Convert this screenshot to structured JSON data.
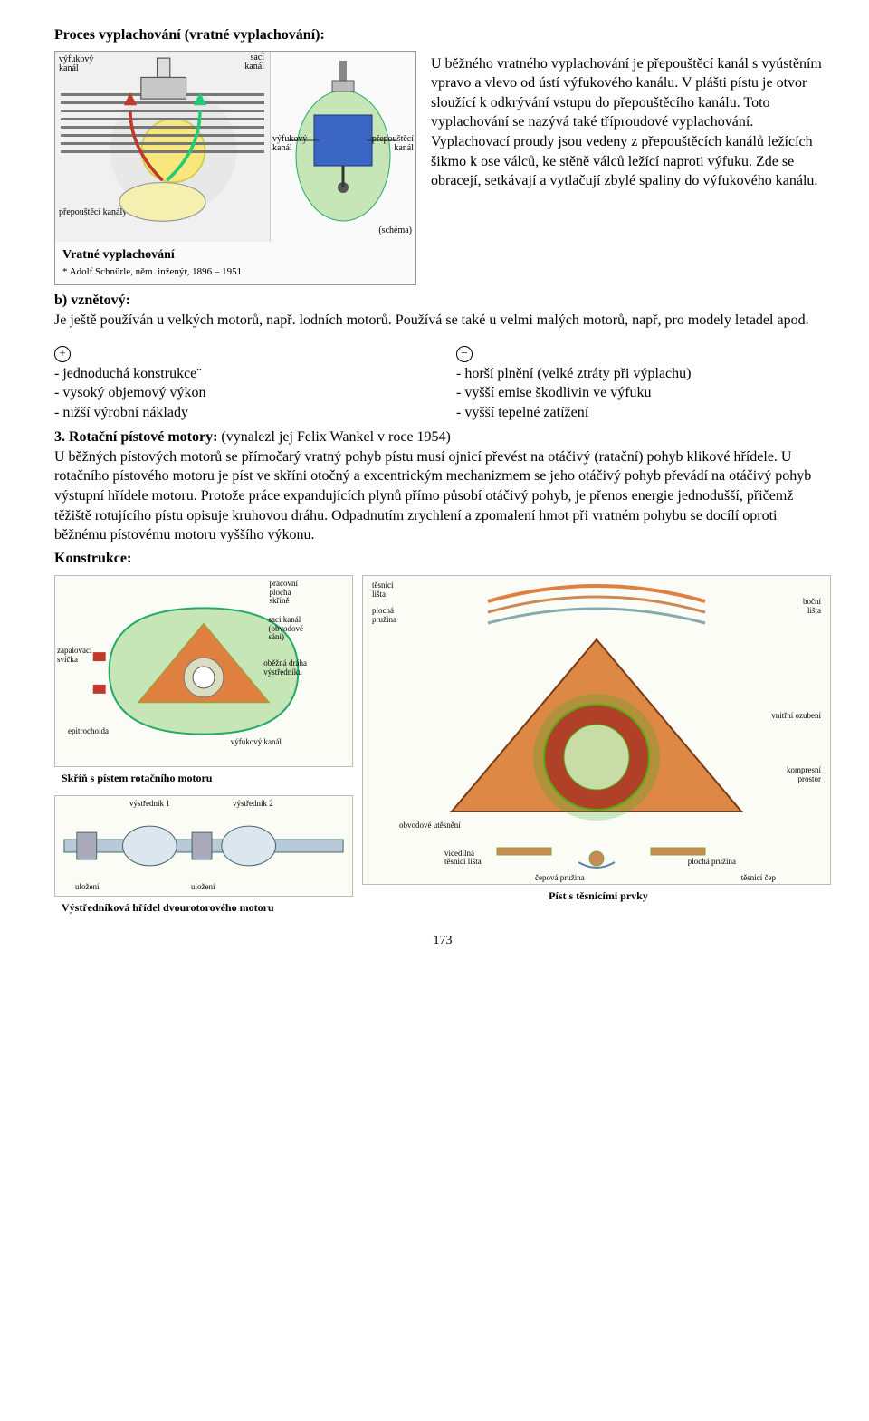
{
  "title": "Proces vyplachování (vratné vyplachování):",
  "fig1": {
    "labels": {
      "vyfukovy_kanal": "výfukový\nkanál",
      "saci_kanal": "sací\nkanál",
      "vyfukovy_kanal2": "výfukový\nkanál",
      "prepousteci_kanal": "přepouštěcí\nkanál",
      "prepousteci_kanaly": "přepouštěcí kanály",
      "schema": "(schéma)"
    },
    "caption": "Vratné vyplachování",
    "footnote": "* Adolf Schnürle, něm. inženýr, 1896 – 1951"
  },
  "intro_paragraph": "U běžného vratného vyplachování je přepouštěcí kanál s vyústěním vpravo a vlevo od ústí výfukového kanálu. V plášti pístu je otvor sloužící k odkrývání vstupu do přepouštěcího kanálu. Toto vyplachování se nazývá také tříproudové vyplachování. Vyplachovací proudy jsou vedeny z přepouštěcích kanálů ležících šikmo k ose válců, ke stěně válců ležící naproti výfuku. Zde se obracejí, setkávají a vytlačují zbylé spaliny do výfukového kanálu.",
  "b_heading": "b) vznětový:",
  "b_text": "Je ještě používán u velkých motorů, např. lodních motorů. Používá se také u velmi malých motorů, např, pro modely letadel apod.",
  "pros": [
    "- jednoduchá konstrukce¨",
    "- vysoký objemový výkon",
    "- nižší výrobní náklady"
  ],
  "cons": [
    "- horší plnění (velké ztráty při výplachu)",
    "- vyšší emise škodlivin ve výfuku",
    "- vyšší tepelné zatížení"
  ],
  "section3_heading": "3. Rotační pístové motory:",
  "section3_inline": " (vynalezl jej Felix Wankel v roce 1954)",
  "section3_body": "U běžných pístových motorů se přímočarý vratný pohyb pístu musí ojnicí převést na otáčivý (ratační) pohyb klikové hřídele. U rotačního pístového motoru je píst ve skříni otočný a excentrickým mechanizmem se jeho otáčivý pohyb převádí na otáčivý pohyb výstupní hřídele motoru. Protože práce expandujících plynů přímo působí otáčivý pohyb, je přenos energie jednodušší, přičemž těžiště rotujícího pístu opisuje kruhovou dráhu. Odpadnutím zrychlení a zpomalení hmot při vratném pohybu se docílí oproti běžnému pístovému motoru vyššího výkonu.",
  "konstrukce": "Konstrukce:",
  "fig_rotor": {
    "labels": {
      "zapalovaci_svicka": "zapalovací\nsvíčka",
      "epitrochoida": "epitrochoida",
      "pracovni_plocha": "pracovní\nplocha\nskříně",
      "saci_kanal": "sací kanál\n(obvodové\nsání)",
      "obezna_draha": "oběžná dráha\nvýstředníku",
      "vyfukovy_kanal": "výfukový kanál"
    },
    "caption": "Skříň s pístem rotačního motoru"
  },
  "fig_seal": {
    "labels": {
      "tesnici_lista": "těsnicí\nlišta",
      "plocha_pruzina": "plochá\npružina",
      "bocni_lista": "boční\nlišta",
      "vnitrni_ozubeni": "vnitřní ozubení",
      "obvodove_utesneni": "obvodové utěsnění",
      "kompresni_prostor": "kompresní\nprostor",
      "vicedilna": "vícedílná\ntěsnicí lišta",
      "plocha_pruzina2": "plochá pružina",
      "cepova_pruzina": "čepová pružina",
      "tesnici_cep": "těsnicí čep"
    },
    "caption": "Píst s těsnicími prvky"
  },
  "fig_shaft": {
    "labels": {
      "vystrednik1": "výstředník 1",
      "vystrednik2": "výstředník 2",
      "ulozeni": "uložení",
      "ulozeni2": "uložení"
    },
    "caption": "Výstředníková hřídel dvourotorového motoru"
  },
  "page_number": "173"
}
